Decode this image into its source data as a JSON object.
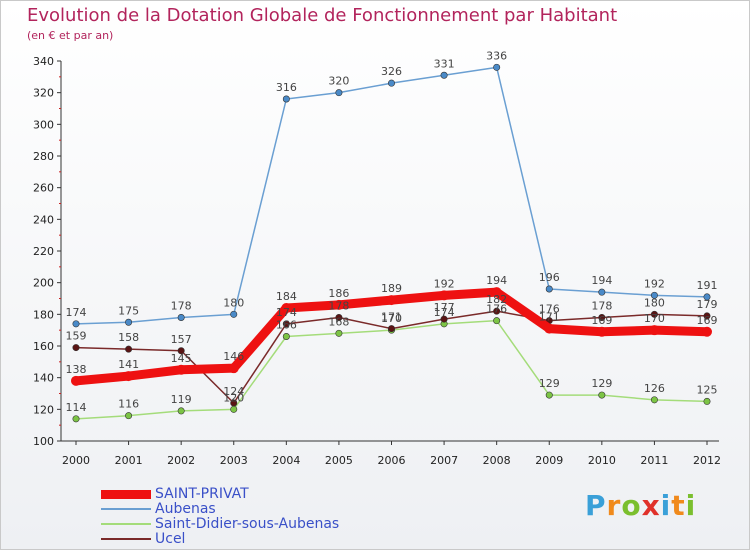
{
  "title": "Evolution de la Dotation Globale de Fonctionnement par Habitant",
  "subtitle": "(en € et par an)",
  "logo": [
    "P",
    "r",
    "o",
    "x",
    "i",
    "t",
    "i"
  ],
  "chart_data": {
    "type": "line",
    "x": [
      "2000",
      "2001",
      "2002",
      "2003",
      "2004",
      "2005",
      "2006",
      "2007",
      "2008",
      "2009",
      "2010",
      "2011",
      "2012"
    ],
    "ylim": [
      100,
      340
    ],
    "yticks": [
      100,
      120,
      140,
      160,
      180,
      200,
      220,
      240,
      260,
      280,
      300,
      320,
      340
    ],
    "grid": false,
    "legend_position": "bottom-left",
    "series": [
      {
        "name": "Aubenas",
        "color": "#6a9fd2",
        "marker": "#4a8ac8",
        "values": [
          174,
          175,
          178,
          180,
          316,
          320,
          326,
          331,
          336,
          196,
          194,
          192,
          191
        ],
        "labels": [
          "174",
          "175",
          "178",
          "180",
          "316",
          "320",
          "326",
          "331",
          "336",
          "196",
          "194",
          "192",
          "191"
        ]
      },
      {
        "name": "Saint-Didier-sous-Aubenas",
        "color": "#a4dc7a",
        "marker": "#7cc445",
        "values": [
          114,
          116,
          119,
          120,
          166,
          168,
          170,
          174,
          176,
          129,
          129,
          126,
          125
        ],
        "labels": [
          "114",
          "116",
          "119",
          "120",
          "166",
          "168",
          "170",
          "174",
          "176",
          "129",
          "129",
          "126",
          "125"
        ]
      },
      {
        "name": "Ucel",
        "color": "#7a2a2a",
        "marker": "#5a1414",
        "values": [
          159,
          158,
          157,
          124,
          174,
          178,
          171,
          177,
          182,
          176,
          178,
          180,
          179
        ],
        "labels": [
          "159",
          "158",
          "157",
          "124",
          "174",
          "178",
          "171",
          "177",
          "182",
          "176",
          "178",
          "180",
          "179"
        ]
      },
      {
        "name": "SAINT-PRIVAT",
        "color": "#ee1111",
        "marker": "#ee1111",
        "values": [
          138,
          141,
          145,
          146,
          184,
          186,
          189,
          192,
          194,
          171,
          169,
          170,
          169
        ],
        "labels": [
          "138",
          "141",
          "145",
          "146",
          "184",
          "186",
          "189",
          "192",
          "194",
          "171",
          "169",
          "170",
          "169"
        ]
      }
    ],
    "legend": [
      {
        "name": "SAINT-PRIVAT",
        "color": "#ee1111",
        "width": 9
      },
      {
        "name": "Aubenas",
        "color": "#6a9fd2",
        "width": 2
      },
      {
        "name": "Saint-Didier-sous-Aubenas",
        "color": "#a4dc7a",
        "width": 2
      },
      {
        "name": "Ucel",
        "color": "#7a2a2a",
        "width": 2
      }
    ]
  }
}
